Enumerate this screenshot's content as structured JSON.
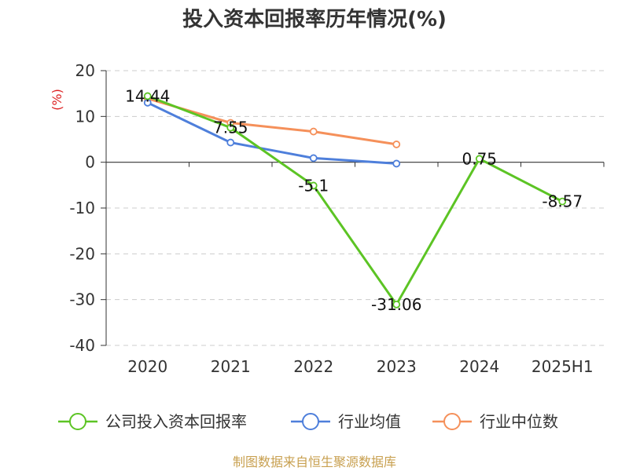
{
  "chart_data": {
    "type": "line",
    "title": "投入资本回报率历年情况(%)",
    "ylabel": "(%)",
    "categories": [
      "2020",
      "2021",
      "2022",
      "2023",
      "2024",
      "2025H1"
    ],
    "ylim": [
      -40,
      20
    ],
    "yticks": [
      "20",
      "10",
      "0",
      "-10",
      "-20",
      "-30",
      "-40"
    ],
    "grid": true,
    "legend_position": "bottom",
    "series": [
      {
        "name": "公司投入资本回报率",
        "color": "#5cc424",
        "values": [
          14.44,
          7.55,
          -5.1,
          -31.06,
          0.75,
          -8.57
        ],
        "labels": [
          "14.44",
          "7.55",
          "-5.1",
          "-31.06",
          "0.75",
          "-8.57"
        ]
      },
      {
        "name": "行业均值",
        "color": "#4e7fdb",
        "values": [
          13.0,
          4.3,
          0.9,
          -0.3,
          null,
          null
        ]
      },
      {
        "name": "行业中位数",
        "color": "#f5905a",
        "values": [
          13.9,
          8.6,
          6.7,
          3.9,
          null,
          null
        ]
      }
    ]
  },
  "source": {
    "text": "制图数据来自恒生聚源数据库",
    "color": "#c8a050"
  }
}
